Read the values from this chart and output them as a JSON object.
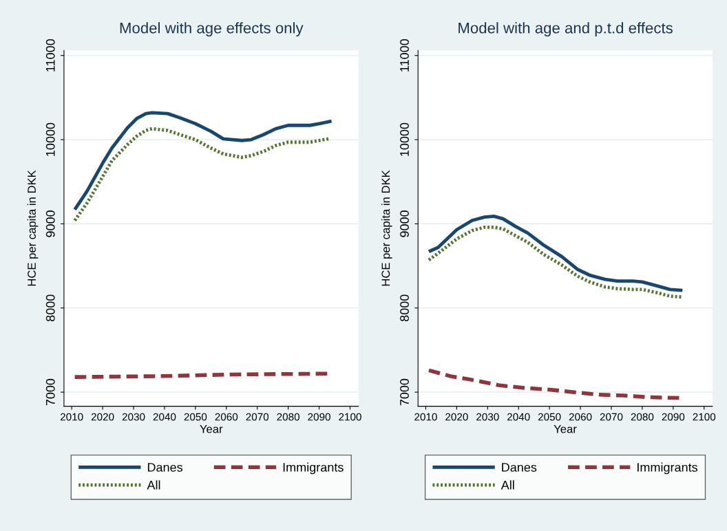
{
  "chart_data": [
    {
      "type": "line",
      "title": "Model with age effects only",
      "xlabel": "Year",
      "ylabel": "HCE per capita in DKK",
      "xlim": [
        2007.5,
        2102.7
      ],
      "ylim": [
        6833,
        11060
      ],
      "xticks": [
        2010,
        2020,
        2030,
        2040,
        2050,
        2060,
        2070,
        2080,
        2090,
        2100
      ],
      "yticks": [
        7000,
        8000,
        9000,
        10000,
        11000
      ],
      "grid": "y",
      "legend": "bottom",
      "series": [
        {
          "name": "Danes",
          "color": "#1a476f",
          "line_style": "solid",
          "x": [
            2011,
            2015,
            2020,
            2023,
            2028,
            2031,
            2034,
            2036,
            2041,
            2045,
            2050,
            2055,
            2059,
            2065,
            2068,
            2072,
            2076,
            2080,
            2087,
            2090,
            2094
          ],
          "values": [
            9170,
            9390,
            9720,
            9900,
            10140,
            10250,
            10310,
            10320,
            10310,
            10260,
            10190,
            10100,
            10010,
            9990,
            10000,
            10060,
            10130,
            10170,
            10170,
            10190,
            10220
          ]
        },
        {
          "name": "Immigrants",
          "color": "#90353b",
          "line_style": "dashed",
          "x": [
            2011,
            2038,
            2062,
            2093
          ],
          "values": [
            7180,
            7190,
            7210,
            7220
          ]
        },
        {
          "name": "All",
          "color": "#55752f",
          "line_style": "dotted",
          "x": [
            2011,
            2015,
            2020,
            2023,
            2028,
            2031,
            2034,
            2036,
            2041,
            2045,
            2050,
            2055,
            2059,
            2065,
            2068,
            2072,
            2076,
            2080,
            2087,
            2090,
            2093
          ],
          "values": [
            9040,
            9250,
            9560,
            9750,
            9940,
            10040,
            10110,
            10130,
            10110,
            10060,
            10000,
            9900,
            9830,
            9790,
            9810,
            9860,
            9930,
            9970,
            9970,
            9990,
            10010
          ]
        }
      ]
    },
    {
      "type": "line",
      "title": "Model with age and p.t.d effects",
      "xlabel": "Year",
      "ylabel": "HCE per capita in DKK",
      "xlim": [
        2007.5,
        2102.7
      ],
      "ylim": [
        6833,
        11060
      ],
      "xticks": [
        2010,
        2020,
        2030,
        2040,
        2050,
        2060,
        2070,
        2080,
        2090,
        2100
      ],
      "yticks": [
        7000,
        8000,
        9000,
        10000,
        11000
      ],
      "grid": "y",
      "legend": "bottom",
      "series": [
        {
          "name": "Danes",
          "color": "#1a476f",
          "line_style": "solid",
          "x": [
            2011,
            2014,
            2020,
            2025,
            2029,
            2032,
            2035,
            2039,
            2043,
            2048,
            2054,
            2059,
            2063,
            2068,
            2072,
            2077,
            2080,
            2085,
            2089,
            2093
          ],
          "values": [
            8670,
            8720,
            8930,
            9040,
            9080,
            9090,
            9060,
            8970,
            8890,
            8750,
            8610,
            8460,
            8390,
            8340,
            8320,
            8320,
            8310,
            8260,
            8220,
            8210
          ]
        },
        {
          "name": "Immigrants",
          "color": "#90353b",
          "line_style": "dashed",
          "x": [
            2011,
            2018,
            2026,
            2034,
            2042,
            2050,
            2058,
            2066,
            2074,
            2082,
            2093
          ],
          "values": [
            7260,
            7190,
            7140,
            7080,
            7050,
            7030,
            7000,
            6970,
            6960,
            6940,
            6930
          ]
        },
        {
          "name": "All",
          "color": "#55752f",
          "line_style": "dotted",
          "x": [
            2011,
            2014,
            2020,
            2025,
            2029,
            2032,
            2035,
            2039,
            2043,
            2048,
            2054,
            2059,
            2063,
            2068,
            2072,
            2077,
            2080,
            2085,
            2089,
            2093
          ],
          "values": [
            8570,
            8650,
            8820,
            8920,
            8960,
            8960,
            8940,
            8860,
            8780,
            8640,
            8510,
            8380,
            8310,
            8250,
            8230,
            8220,
            8220,
            8180,
            8140,
            8130
          ]
        }
      ]
    }
  ]
}
